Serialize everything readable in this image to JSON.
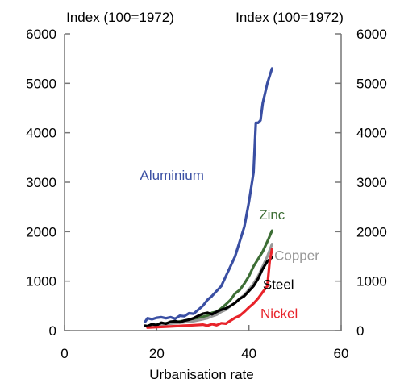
{
  "chart_data": {
    "type": "line",
    "xlabel": "Urbanisation rate",
    "ylabel_left": "Index (100=1972)",
    "ylabel_right": "Index (100=1972)",
    "xlim": [
      0,
      60
    ],
    "ylim": [
      0,
      6000
    ],
    "xticks": [
      0,
      20,
      40,
      60
    ],
    "yticks": [
      0,
      1000,
      2000,
      3000,
      4000,
      5000,
      6000
    ],
    "grid": false,
    "series": [
      {
        "name": "Aluminium",
        "color": "#3a4fa3",
        "x": [
          17.5,
          18,
          19,
          20,
          21,
          22,
          23,
          24,
          25,
          26,
          27,
          28,
          29,
          30,
          31,
          32,
          33,
          34,
          35,
          36,
          37,
          38,
          39,
          40,
          41,
          41.5,
          42,
          42.5,
          43,
          44,
          45
        ],
        "y": [
          180,
          250,
          230,
          260,
          270,
          250,
          270,
          240,
          300,
          290,
          350,
          340,
          420,
          500,
          620,
          700,
          800,
          900,
          1100,
          1300,
          1500,
          1800,
          2100,
          2600,
          3200,
          4200,
          4200,
          4250,
          4600,
          5000,
          5300
        ]
      },
      {
        "name": "Zinc",
        "color": "#3d6e35",
        "x": [
          18,
          20,
          22,
          24,
          26,
          28,
          30,
          31,
          32,
          33,
          34,
          35,
          36,
          37,
          38,
          39,
          40,
          41,
          42,
          43,
          44,
          45
        ],
        "y": [
          80,
          120,
          150,
          170,
          200,
          220,
          280,
          300,
          360,
          380,
          450,
          530,
          620,
          750,
          820,
          950,
          1100,
          1300,
          1450,
          1600,
          1800,
          2020
        ]
      },
      {
        "name": "Copper",
        "color": "#999999",
        "x": [
          18,
          20,
          22,
          24,
          26,
          28,
          30,
          31,
          32,
          33,
          34,
          35,
          36,
          37,
          38,
          39,
          40,
          41,
          42,
          43,
          44,
          45
        ],
        "y": [
          90,
          110,
          130,
          150,
          170,
          190,
          230,
          250,
          290,
          320,
          380,
          420,
          500,
          560,
          650,
          720,
          830,
          950,
          1100,
          1300,
          1500,
          1750
        ]
      },
      {
        "name": "Steel",
        "color": "#000000",
        "x": [
          17.5,
          18,
          19,
          20,
          21,
          22,
          23,
          24,
          25,
          26,
          27,
          28,
          29,
          30,
          31,
          32,
          33,
          34,
          35,
          36,
          37,
          38,
          39,
          40,
          41,
          42,
          43,
          44,
          45
        ],
        "y": [
          100,
          90,
          130,
          110,
          160,
          140,
          180,
          190,
          170,
          200,
          220,
          250,
          300,
          340,
          360,
          330,
          380,
          420,
          450,
          500,
          560,
          640,
          700,
          800,
          900,
          1050,
          1250,
          1400,
          1480
        ]
      },
      {
        "name": "Nickel",
        "color": "#e8232a",
        "x": [
          18,
          20,
          22,
          24,
          26,
          28,
          30,
          31,
          32,
          33,
          34,
          35,
          36,
          37,
          38,
          39,
          40,
          41,
          42,
          43,
          44,
          44.5,
          45
        ],
        "y": [
          60,
          70,
          80,
          90,
          100,
          110,
          120,
          100,
          130,
          110,
          150,
          140,
          200,
          260,
          300,
          380,
          470,
          550,
          650,
          780,
          900,
          1400,
          1650
        ]
      }
    ]
  }
}
